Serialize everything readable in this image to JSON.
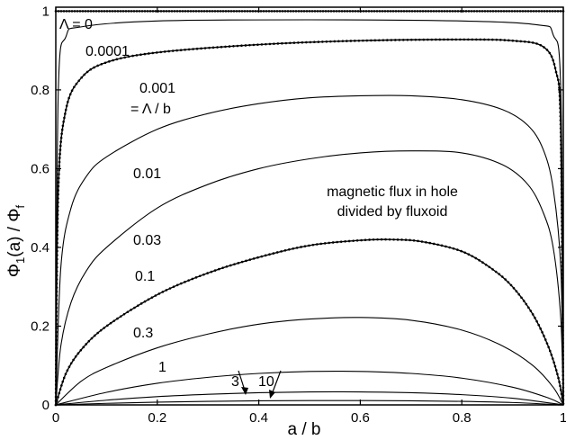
{
  "chart_data": {
    "type": "line",
    "title": "",
    "xlabel": "a / b",
    "ylabel_main": "Φ",
    "ylabel_sub": "1",
    "ylabel_mid": "(a) / Φ",
    "ylabel_sub2": "f",
    "xlim": [
      0,
      1
    ],
    "ylim": [
      0,
      1.01
    ],
    "xticks": [
      "0",
      "0.2",
      "0.4",
      "0.6",
      "0.8",
      "1"
    ],
    "yticks": [
      "0",
      "0.2",
      "0.4",
      "0.6",
      "0.8",
      "1"
    ],
    "grid": false,
    "annotation": [
      "magnetic flux in hole",
      "divided  by  fluxoid"
    ],
    "series": [
      {
        "label": "Λ = 0",
        "dotted": true,
        "values": [
          [
            0,
            1.0
          ],
          [
            0.2,
            1.0
          ],
          [
            0.4,
            1.0
          ],
          [
            0.6,
            1.0
          ],
          [
            0.8,
            1.0
          ],
          [
            1.0,
            1.0
          ]
        ]
      },
      {
        "label": "0.0001",
        "dotted": false,
        "values": [
          [
            0.0,
            0.0
          ],
          [
            0.005,
            0.8
          ],
          [
            0.02,
            0.935
          ],
          [
            0.05,
            0.96
          ],
          [
            0.2,
            0.975
          ],
          [
            0.5,
            0.978
          ],
          [
            0.8,
            0.975
          ],
          [
            0.95,
            0.965
          ],
          [
            0.98,
            0.94
          ],
          [
            0.995,
            0.8
          ],
          [
            1.0,
            0.0
          ]
        ]
      },
      {
        "label": "0.001",
        "dotted": true,
        "values": [
          [
            0.0,
            0.0
          ],
          [
            0.005,
            0.55
          ],
          [
            0.02,
            0.75
          ],
          [
            0.05,
            0.83
          ],
          [
            0.1,
            0.87
          ],
          [
            0.2,
            0.895
          ],
          [
            0.4,
            0.915
          ],
          [
            0.6,
            0.925
          ],
          [
            0.8,
            0.928
          ],
          [
            0.9,
            0.925
          ],
          [
            0.96,
            0.91
          ],
          [
            0.985,
            0.85
          ],
          [
            0.995,
            0.7
          ],
          [
            1.0,
            0.0
          ]
        ]
      },
      {
        "label": "0.01",
        "dotted": false,
        "values": [
          [
            0.0,
            0.0
          ],
          [
            0.01,
            0.35
          ],
          [
            0.03,
            0.5
          ],
          [
            0.06,
            0.58
          ],
          [
            0.1,
            0.63
          ],
          [
            0.2,
            0.7
          ],
          [
            0.3,
            0.74
          ],
          [
            0.4,
            0.765
          ],
          [
            0.5,
            0.78
          ],
          [
            0.6,
            0.785
          ],
          [
            0.7,
            0.785
          ],
          [
            0.8,
            0.775
          ],
          [
            0.88,
            0.75
          ],
          [
            0.93,
            0.71
          ],
          [
            0.96,
            0.65
          ],
          [
            0.98,
            0.55
          ],
          [
            0.995,
            0.35
          ],
          [
            1.0,
            0.0
          ]
        ]
      },
      {
        "label": "0.03",
        "dotted": false,
        "values": [
          [
            0.0,
            0.0
          ],
          [
            0.01,
            0.15
          ],
          [
            0.03,
            0.26
          ],
          [
            0.06,
            0.34
          ],
          [
            0.1,
            0.4
          ],
          [
            0.2,
            0.5
          ],
          [
            0.3,
            0.56
          ],
          [
            0.4,
            0.6
          ],
          [
            0.5,
            0.625
          ],
          [
            0.6,
            0.64
          ],
          [
            0.7,
            0.645
          ],
          [
            0.8,
            0.64
          ],
          [
            0.88,
            0.61
          ],
          [
            0.93,
            0.56
          ],
          [
            0.96,
            0.49
          ],
          [
            0.98,
            0.4
          ],
          [
            0.995,
            0.22
          ],
          [
            1.0,
            0.0
          ]
        ]
      },
      {
        "label": "0.1",
        "dotted": true,
        "values": [
          [
            0.0,
            0.0
          ],
          [
            0.02,
            0.08
          ],
          [
            0.05,
            0.14
          ],
          [
            0.1,
            0.2
          ],
          [
            0.2,
            0.28
          ],
          [
            0.3,
            0.335
          ],
          [
            0.4,
            0.375
          ],
          [
            0.5,
            0.405
          ],
          [
            0.6,
            0.418
          ],
          [
            0.66,
            0.42
          ],
          [
            0.72,
            0.415
          ],
          [
            0.8,
            0.39
          ],
          [
            0.86,
            0.345
          ],
          [
            0.9,
            0.3
          ],
          [
            0.94,
            0.23
          ],
          [
            0.97,
            0.15
          ],
          [
            0.99,
            0.07
          ],
          [
            1.0,
            0.0
          ]
        ]
      },
      {
        "label": "0.3",
        "dotted": false,
        "values": [
          [
            0.0,
            0.0
          ],
          [
            0.05,
            0.06
          ],
          [
            0.1,
            0.095
          ],
          [
            0.2,
            0.145
          ],
          [
            0.3,
            0.18
          ],
          [
            0.4,
            0.205
          ],
          [
            0.5,
            0.218
          ],
          [
            0.6,
            0.222
          ],
          [
            0.7,
            0.215
          ],
          [
            0.8,
            0.19
          ],
          [
            0.88,
            0.15
          ],
          [
            0.94,
            0.1
          ],
          [
            0.98,
            0.045
          ],
          [
            1.0,
            0.0
          ]
        ]
      },
      {
        "label": "1",
        "dotted": false,
        "values": [
          [
            0.0,
            0.0
          ],
          [
            0.1,
            0.032
          ],
          [
            0.2,
            0.055
          ],
          [
            0.3,
            0.07
          ],
          [
            0.4,
            0.08
          ],
          [
            0.5,
            0.085
          ],
          [
            0.6,
            0.085
          ],
          [
            0.7,
            0.08
          ],
          [
            0.8,
            0.068
          ],
          [
            0.9,
            0.045
          ],
          [
            0.97,
            0.018
          ],
          [
            1.0,
            0.0
          ]
        ]
      },
      {
        "label": "3",
        "dotted": false,
        "values": [
          [
            0.0,
            0.0
          ],
          [
            0.1,
            0.012
          ],
          [
            0.2,
            0.021
          ],
          [
            0.3,
            0.027
          ],
          [
            0.4,
            0.031
          ],
          [
            0.5,
            0.033
          ],
          [
            0.6,
            0.033
          ],
          [
            0.7,
            0.031
          ],
          [
            0.8,
            0.026
          ],
          [
            0.9,
            0.017
          ],
          [
            1.0,
            0.0
          ]
        ]
      },
      {
        "label": "10",
        "dotted": false,
        "values": [
          [
            0.0,
            0.0
          ],
          [
            0.1,
            0.004
          ],
          [
            0.2,
            0.007
          ],
          [
            0.3,
            0.009
          ],
          [
            0.4,
            0.0105
          ],
          [
            0.5,
            0.011
          ],
          [
            0.6,
            0.011
          ],
          [
            0.7,
            0.0105
          ],
          [
            0.8,
            0.009
          ],
          [
            0.9,
            0.006
          ],
          [
            1.0,
            0.0
          ]
        ]
      }
    ],
    "curve_labels": [
      {
        "text": "Λ = 0"
      },
      {
        "text": "0.0001"
      },
      {
        "text": "0.001"
      },
      {
        "text": "= Λ / b"
      },
      {
        "text": "0.01"
      },
      {
        "text": "0.03"
      },
      {
        "text": "0.1"
      },
      {
        "text": "0.3"
      },
      {
        "text": "1"
      },
      {
        "text": "3"
      },
      {
        "text": "10"
      }
    ]
  }
}
